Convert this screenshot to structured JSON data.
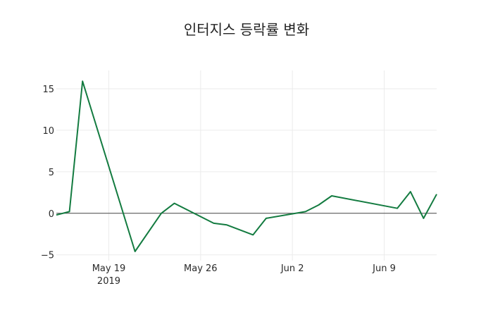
{
  "title": "인터지스 등락률 변화",
  "colors": {
    "line": "#137b40",
    "grid": "#ebebeb",
    "zeroline": "#444444",
    "text": "#2a2a2a"
  },
  "chart_data": {
    "type": "line",
    "title": "인터지스 등락률 변화",
    "xlabel": "",
    "ylabel": "",
    "x_ticks": [
      {
        "date": "2019-05-19",
        "label": "May 19",
        "sublabel": "2019"
      },
      {
        "date": "2019-05-26",
        "label": "May 26",
        "sublabel": ""
      },
      {
        "date": "2019-06-02",
        "label": "Jun 2",
        "sublabel": ""
      },
      {
        "date": "2019-06-09",
        "label": "Jun 9",
        "sublabel": ""
      }
    ],
    "y_ticks": [
      -5,
      0,
      5,
      10,
      15
    ],
    "y_tick_labels": [
      "−5",
      "0",
      "5",
      "10",
      "15"
    ],
    "xlim": [
      "2019-05-15",
      "2019-06-13"
    ],
    "ylim": [
      -5.7,
      17.2
    ],
    "grid": true,
    "legend": null,
    "series": [
      {
        "name": "등락률",
        "x": [
          "2019-05-15",
          "2019-05-16",
          "2019-05-17",
          "2019-05-21",
          "2019-05-23",
          "2019-05-24",
          "2019-05-27",
          "2019-05-28",
          "2019-05-30",
          "2019-05-31",
          "2019-06-03",
          "2019-06-04",
          "2019-06-05",
          "2019-06-10",
          "2019-06-11",
          "2019-06-12",
          "2019-06-13"
        ],
        "values": [
          -0.2,
          0.2,
          15.9,
          -4.6,
          0.0,
          1.2,
          -1.2,
          -1.4,
          -2.6,
          -0.6,
          0.2,
          1.0,
          2.1,
          0.6,
          2.6,
          -0.6,
          2.3
        ]
      }
    ]
  }
}
